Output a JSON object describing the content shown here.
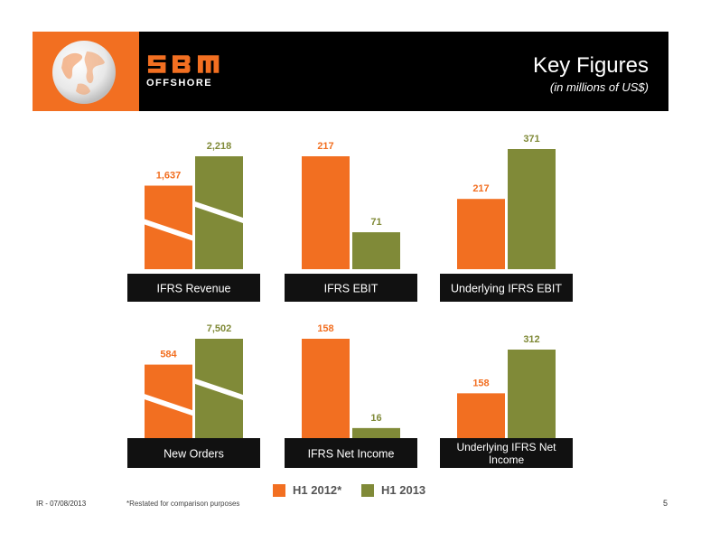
{
  "header": {
    "logo_text": "SBM",
    "logo_sub": "OFFSHORE",
    "title": "Key Figures",
    "subtitle": "(in millions of US$)"
  },
  "colors": {
    "h1_2012": "#f26f21",
    "h1_2013": "#808a38",
    "label_bg": "#111111",
    "header_bg": "#000000",
    "accent": "#f26f21"
  },
  "legend": {
    "h1_2012": "H1 2012*",
    "h1_2013": "H1 2013"
  },
  "footer": {
    "left": "IR - 07/08/2013",
    "footnote": "*Restated for comparison purposes",
    "page": "5"
  },
  "chart_data": [
    {
      "type": "bar",
      "title": "IFRS Revenue",
      "categories": [
        "H1 2012*",
        "H1 2013"
      ],
      "values": [
        1637,
        2218
      ],
      "value_labels": [
        "1,637",
        "2,218"
      ],
      "axis_break": true
    },
    {
      "type": "bar",
      "title": "IFRS EBIT",
      "categories": [
        "H1 2012*",
        "H1 2013"
      ],
      "values": [
        217,
        71
      ],
      "value_labels": [
        "217",
        "71"
      ],
      "axis_break": false
    },
    {
      "type": "bar",
      "title": "Underlying IFRS EBIT",
      "categories": [
        "H1 2012*",
        "H1 2013"
      ],
      "values": [
        217,
        371
      ],
      "value_labels": [
        "217",
        "371"
      ],
      "axis_break": false
    },
    {
      "type": "bar",
      "title": "New Orders",
      "categories": [
        "H1 2012*",
        "H1 2013"
      ],
      "values": [
        584,
        7502
      ],
      "value_labels": [
        "584",
        "7,502"
      ],
      "axis_break": true
    },
    {
      "type": "bar",
      "title": "IFRS Net Income",
      "categories": [
        "H1 2012*",
        "H1 2013"
      ],
      "values": [
        158,
        16
      ],
      "value_labels": [
        "158",
        "16"
      ],
      "axis_break": false
    },
    {
      "type": "bar",
      "title": "Underlying IFRS Net Income",
      "categories": [
        "H1 2012*",
        "H1 2013"
      ],
      "values": [
        158,
        312
      ],
      "value_labels": [
        "158",
        "312"
      ],
      "axis_break": false
    }
  ]
}
